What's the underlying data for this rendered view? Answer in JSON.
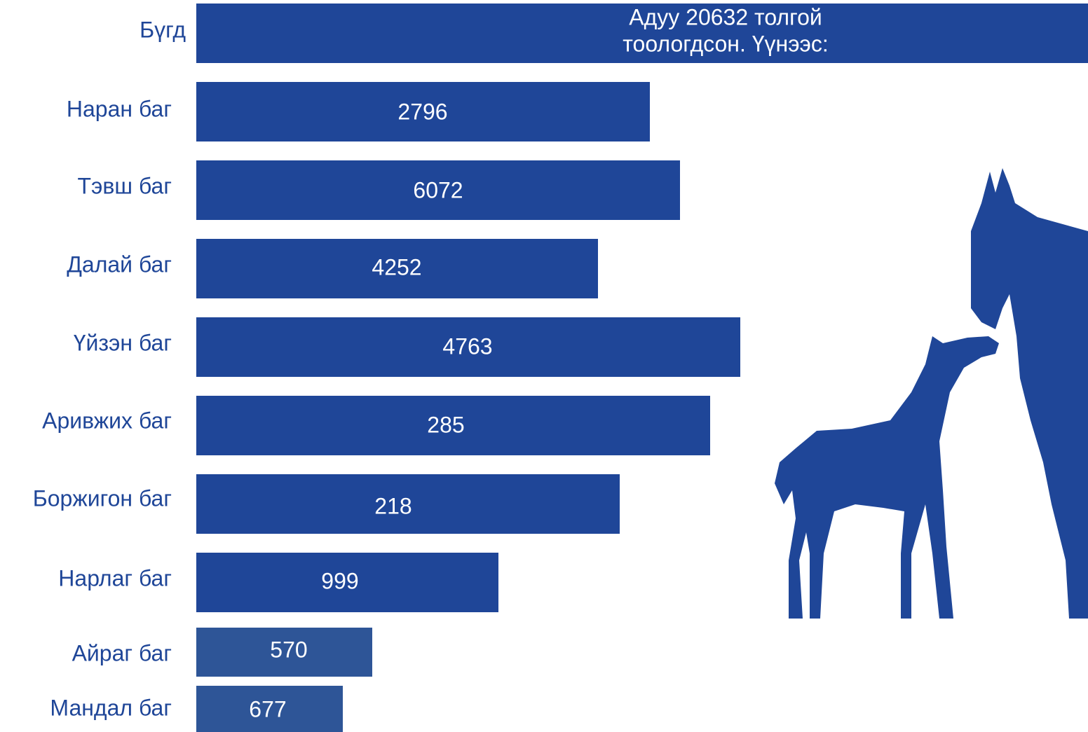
{
  "total": {
    "label": "Бүгд",
    "text": [
      "Адуу 20632 толгой",
      "тоологдсон. Үүнээс:"
    ]
  },
  "rows": [
    {
      "label": "Наран баг",
      "value": 2796
    },
    {
      "label": "Тэвш баг",
      "value": 6072
    },
    {
      "label": "Далай баг",
      "value": 4252
    },
    {
      "label": "Үйзэн баг",
      "value": 4763
    },
    {
      "label": "Аривжих баг",
      "value": 285
    },
    {
      "label": "Боржигон баг",
      "value": 218
    },
    {
      "label": "Нарлаг баг",
      "value": 999
    },
    {
      "label": "Айраг баг",
      "value": 570
    },
    {
      "label": "Мандал баг",
      "value": 677
    }
  ]
}
